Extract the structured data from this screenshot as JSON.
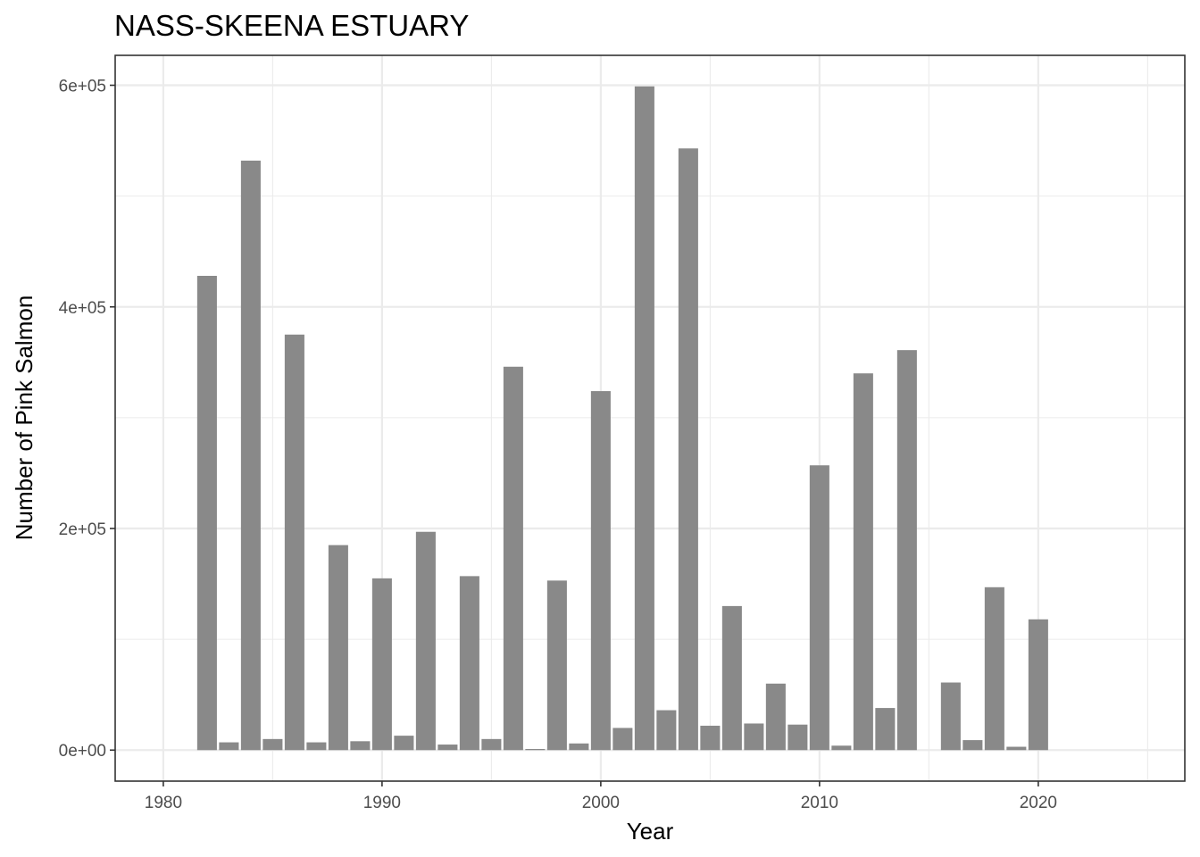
{
  "chart_data": {
    "type": "bar",
    "title": "NASS-SKEENA ESTUARY",
    "xlabel": "Year",
    "ylabel": "Number of Pink Salmon",
    "xlim": [
      1977.8,
      2026.7
    ],
    "ylim": [
      -28000,
      627000
    ],
    "x_ticks": [
      1980,
      1990,
      2000,
      2010,
      2020
    ],
    "x_tick_labels": [
      "1980",
      "1990",
      "2000",
      "2010",
      "2020"
    ],
    "y_ticks": [
      0,
      200000,
      400000,
      600000
    ],
    "y_tick_labels": [
      "0e+00",
      "2e+05",
      "4e+05",
      "6e+05"
    ],
    "grid": true,
    "bar_color": "#898989",
    "x": [
      1982,
      1983,
      1984,
      1985,
      1986,
      1987,
      1988,
      1989,
      1990,
      1991,
      1992,
      1993,
      1994,
      1995,
      1996,
      1997,
      1998,
      1999,
      2000,
      2001,
      2002,
      2003,
      2004,
      2005,
      2006,
      2007,
      2008,
      2009,
      2010,
      2011,
      2012,
      2013,
      2014,
      2016,
      2017,
      2018,
      2019,
      2020
    ],
    "values": [
      428000,
      7000,
      532000,
      10000,
      375000,
      7000,
      185000,
      8000,
      155000,
      13000,
      197000,
      5000,
      157000,
      10000,
      346000,
      1000,
      153000,
      6000,
      324000,
      20000,
      599000,
      36000,
      543000,
      22000,
      130000,
      24000,
      60000,
      23000,
      257000,
      4000,
      340000,
      38000,
      361000,
      61000,
      9000,
      147000,
      3000,
      118000
    ]
  }
}
